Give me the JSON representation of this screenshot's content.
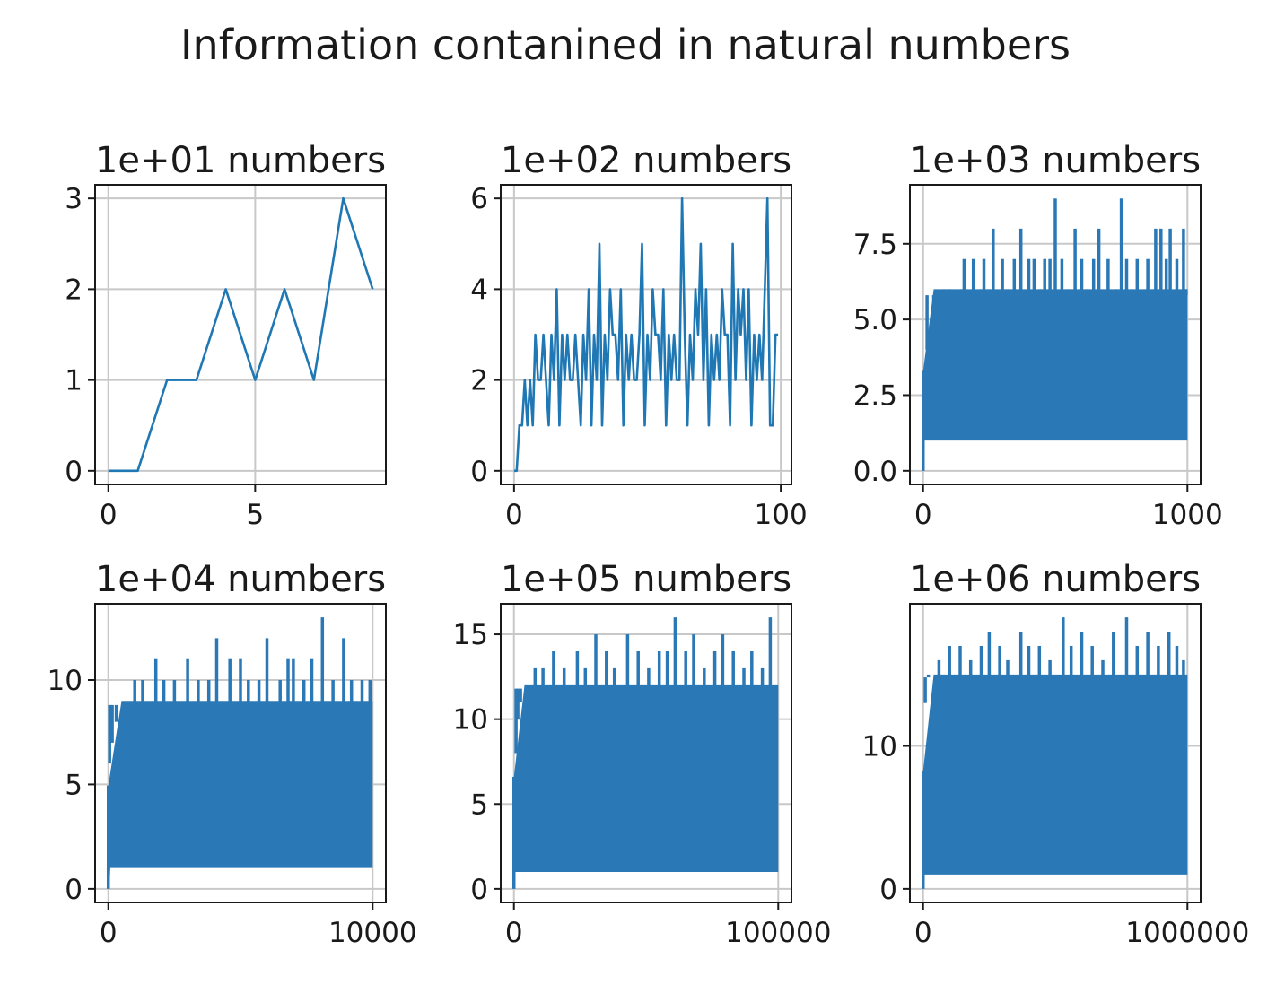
{
  "chart_data": {
    "suptitle": "Information contanined in natural numbers",
    "colors": {
      "line": "#1f77b4",
      "grid": "#c8c8c8",
      "axes": "#1a1a1a"
    },
    "grid": true,
    "panels": [
      {
        "type": "line",
        "title": "1e+01 numbers",
        "xlim": [
          -0.45,
          9.45
        ],
        "ylim": [
          -0.15,
          3.15
        ],
        "xticks": [
          0,
          5
        ],
        "xticklabels": [
          "0",
          "5"
        ],
        "yticks": [
          0,
          1,
          2,
          3
        ],
        "yticklabels": [
          "0",
          "1",
          "2",
          "3"
        ],
        "x": [
          0,
          1,
          2,
          3,
          4,
          5,
          6,
          7,
          8,
          9
        ],
        "y": [
          0,
          0,
          1,
          1,
          2,
          1,
          2,
          1,
          3,
          2
        ]
      },
      {
        "type": "line",
        "title": "1e+02 numbers",
        "xlim": [
          -5,
          104
        ],
        "ylim": [
          -0.3,
          6.3
        ],
        "xticks": [
          0,
          100
        ],
        "xticklabels": [
          "0",
          "100"
        ],
        "yticks": [
          0,
          2,
          4,
          6
        ],
        "yticklabels": [
          "0",
          "2",
          "4",
          "6"
        ],
        "x": [
          0,
          1,
          2,
          3,
          4,
          5,
          6,
          7,
          8,
          9,
          10,
          11,
          12,
          13,
          14,
          15,
          16,
          17,
          18,
          19,
          20,
          21,
          22,
          23,
          24,
          25,
          26,
          27,
          28,
          29,
          30,
          31,
          32,
          33,
          34,
          35,
          36,
          37,
          38,
          39,
          40,
          41,
          42,
          43,
          44,
          45,
          46,
          47,
          48,
          49,
          50,
          51,
          52,
          53,
          54,
          55,
          56,
          57,
          58,
          59,
          60,
          61,
          62,
          63,
          64,
          65,
          66,
          67,
          68,
          69,
          70,
          71,
          72,
          73,
          74,
          75,
          76,
          77,
          78,
          79,
          80,
          81,
          82,
          83,
          84,
          85,
          86,
          87,
          88,
          89,
          90,
          91,
          92,
          93,
          94,
          95,
          96,
          97,
          98,
          99
        ],
        "y": [
          0,
          0,
          1,
          1,
          2,
          1,
          2,
          1,
          3,
          2,
          2,
          3,
          2,
          1,
          3,
          2,
          4,
          1,
          3,
          2,
          3,
          2,
          2,
          3,
          2,
          1,
          3,
          2,
          4,
          1,
          3,
          2,
          5,
          1,
          3,
          2,
          4,
          3,
          3,
          2,
          4,
          1,
          3,
          2,
          3,
          2,
          2,
          3,
          5,
          1,
          3,
          2,
          4,
          3,
          3,
          2,
          4,
          1,
          3,
          2,
          3,
          2,
          2,
          6,
          3,
          1,
          3,
          2,
          4,
          3,
          5,
          2,
          4,
          1,
          3,
          2,
          3,
          2,
          4,
          3,
          3,
          1,
          5,
          2,
          4,
          3,
          4,
          2,
          4,
          1,
          3,
          2,
          3,
          2,
          4,
          6,
          1,
          1,
          3,
          3
        ]
      },
      {
        "type": "line",
        "title": "1e+03 numbers",
        "xlim": [
          -50,
          1050
        ],
        "ylim": [
          -0.45,
          9.45
        ],
        "xticks": [
          0,
          1000
        ],
        "xticklabels": [
          "0",
          "1000"
        ],
        "yticks": [
          0,
          2.5,
          5,
          7.5
        ],
        "yticklabels": [
          "0.0",
          "2.5",
          "5.0",
          "7.5"
        ],
        "band": {
          "low": 1,
          "high": 6,
          "ramp_to": 40
        },
        "spikes": [
          [
            15,
            4
          ],
          [
            40,
            5
          ],
          [
            60,
            5
          ],
          [
            80,
            6
          ],
          [
            100,
            6
          ],
          [
            145,
            6
          ],
          [
            155,
            7
          ],
          [
            190,
            7
          ],
          [
            215,
            6
          ],
          [
            230,
            7
          ],
          [
            250,
            6
          ],
          [
            265,
            8
          ],
          [
            300,
            7
          ],
          [
            320,
            6
          ],
          [
            345,
            7
          ],
          [
            370,
            8
          ],
          [
            400,
            7
          ],
          [
            420,
            7
          ],
          [
            445,
            6
          ],
          [
            460,
            7
          ],
          [
            480,
            7
          ],
          [
            500,
            9
          ],
          [
            525,
            7
          ],
          [
            550,
            6
          ],
          [
            575,
            8
          ],
          [
            600,
            7
          ],
          [
            620,
            6
          ],
          [
            645,
            7
          ],
          [
            665,
            8
          ],
          [
            700,
            7
          ],
          [
            730,
            6
          ],
          [
            750,
            9
          ],
          [
            770,
            7
          ],
          [
            790,
            6
          ],
          [
            810,
            7
          ],
          [
            850,
            7
          ],
          [
            870,
            6
          ],
          [
            880,
            8
          ],
          [
            900,
            8
          ],
          [
            920,
            7
          ],
          [
            935,
            8
          ],
          [
            960,
            7
          ],
          [
            985,
            8
          ],
          [
            995,
            6
          ]
        ]
      },
      {
        "type": "line",
        "title": "1e+04 numbers",
        "xlim": [
          -500,
          10500
        ],
        "ylim": [
          -0.65,
          13.65
        ],
        "xticks": [
          0,
          10000
        ],
        "xticklabels": [
          "0",
          "10000"
        ],
        "yticks": [
          0,
          5,
          10
        ],
        "yticklabels": [
          "0",
          "5",
          "10"
        ],
        "band": {
          "low": 1,
          "high": 9,
          "ramp_to": 500
        },
        "spikes": [
          [
            50,
            6
          ],
          [
            150,
            7
          ],
          [
            300,
            8
          ],
          [
            1000,
            10
          ],
          [
            1300,
            10
          ],
          [
            1800,
            11
          ],
          [
            2100,
            10
          ],
          [
            2500,
            10
          ],
          [
            3000,
            11
          ],
          [
            3400,
            10
          ],
          [
            3800,
            10
          ],
          [
            4100,
            12
          ],
          [
            4600,
            11
          ],
          [
            5000,
            11
          ],
          [
            5300,
            10
          ],
          [
            5700,
            10
          ],
          [
            6000,
            12
          ],
          [
            6500,
            10
          ],
          [
            6800,
            11
          ],
          [
            7000,
            11
          ],
          [
            7400,
            10
          ],
          [
            7700,
            11
          ],
          [
            8100,
            13
          ],
          [
            8500,
            10
          ],
          [
            8900,
            12
          ],
          [
            9200,
            10
          ],
          [
            9600,
            10
          ],
          [
            9900,
            10
          ]
        ]
      },
      {
        "type": "line",
        "title": "1e+05 numbers",
        "xlim": [
          -5000,
          105000
        ],
        "ylim": [
          -0.8,
          16.8
        ],
        "xticks": [
          0,
          100000
        ],
        "xticklabels": [
          "0",
          "100000"
        ],
        "yticks": [
          0,
          5,
          10,
          15
        ],
        "yticklabels": [
          "0",
          "5",
          "10",
          "15"
        ],
        "band": {
          "low": 1,
          "high": 12,
          "ramp_to": 4000
        },
        "spikes": [
          [
            800,
            8
          ],
          [
            1500,
            10
          ],
          [
            2500,
            11
          ],
          [
            8000,
            13
          ],
          [
            11000,
            13
          ],
          [
            15000,
            14
          ],
          [
            19000,
            13
          ],
          [
            24000,
            14
          ],
          [
            27000,
            13
          ],
          [
            31000,
            15
          ],
          [
            35000,
            14
          ],
          [
            38000,
            13
          ],
          [
            43000,
            15
          ],
          [
            47000,
            14
          ],
          [
            51000,
            13
          ],
          [
            55000,
            14
          ],
          [
            58000,
            14
          ],
          [
            61000,
            16
          ],
          [
            65000,
            14
          ],
          [
            68000,
            15
          ],
          [
            72000,
            13
          ],
          [
            76000,
            14
          ],
          [
            79000,
            15
          ],
          [
            83000,
            14
          ],
          [
            87000,
            13
          ],
          [
            90000,
            14
          ],
          [
            94000,
            13
          ],
          [
            97000,
            16
          ]
        ]
      },
      {
        "type": "line",
        "title": "1e+06 numbers",
        "xlim": [
          -50000,
          1050000
        ],
        "ylim": [
          -0.95,
          19.95
        ],
        "xticks": [
          0,
          1000000
        ],
        "xticklabels": [
          "0",
          "1000000"
        ],
        "yticks": [
          0,
          10
        ],
        "yticklabels": [
          "0",
          "10"
        ],
        "band": {
          "low": 1,
          "high": 15,
          "ramp_to": 40000
        },
        "spikes": [
          [
            8000,
            13
          ],
          [
            20000,
            15
          ],
          [
            60000,
            16
          ],
          [
            100000,
            17
          ],
          [
            140000,
            17
          ],
          [
            180000,
            16
          ],
          [
            220000,
            17
          ],
          [
            250000,
            18
          ],
          [
            290000,
            17
          ],
          [
            320000,
            16
          ],
          [
            370000,
            18
          ],
          [
            400000,
            17
          ],
          [
            440000,
            17
          ],
          [
            480000,
            16
          ],
          [
            530000,
            19
          ],
          [
            560000,
            17
          ],
          [
            600000,
            18
          ],
          [
            640000,
            17
          ],
          [
            680000,
            16
          ],
          [
            720000,
            18
          ],
          [
            770000,
            19
          ],
          [
            810000,
            17
          ],
          [
            850000,
            18
          ],
          [
            890000,
            17
          ],
          [
            930000,
            18
          ],
          [
            960000,
            17
          ],
          [
            985000,
            16
          ]
        ]
      }
    ]
  }
}
